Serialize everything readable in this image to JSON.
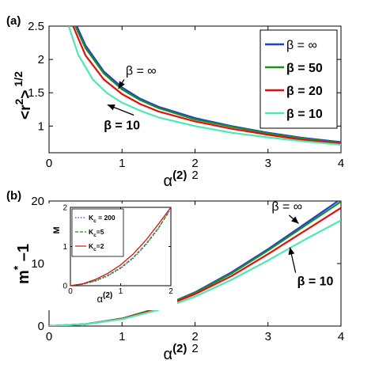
{
  "chart_data": [
    {
      "panel_label": "(a)",
      "type": "line",
      "xlabel": "α",
      "xlabel_sup": "(2)",
      "xlabel_sup2": "2",
      "ylabel": "<r",
      "ylabel_sup": "2",
      "ylabel_rest": ">",
      "ylabel_sup2": "1/2",
      "xlim": [
        0,
        4
      ],
      "ylim": [
        0.6,
        2.5
      ],
      "xticks": [
        "0",
        "1",
        "2",
        "3",
        "4"
      ],
      "xtick_values": [
        0,
        1,
        2,
        3,
        4
      ],
      "yticks": [
        "1",
        "1.5",
        "2",
        "2.5"
      ],
      "ytick_values": [
        1,
        1.5,
        2,
        2.5
      ],
      "legend_position": "top-right",
      "legend": [
        "β = ∞",
        "β = 50",
        "β = 20",
        "β = 10"
      ],
      "series": [
        {
          "name": "β = ∞",
          "color": "#1f3fd6",
          "x": [
            0.38,
            0.5,
            0.75,
            1.0,
            1.25,
            1.5,
            2.0,
            2.5,
            3.0,
            3.5,
            4.0
          ],
          "y": [
            2.5,
            2.21,
            1.82,
            1.58,
            1.41,
            1.29,
            1.12,
            1.0,
            0.9,
            0.82,
            0.76
          ]
        },
        {
          "name": "β = 50",
          "color": "#1e8f1e",
          "x": [
            0.36,
            0.5,
            0.75,
            1.0,
            1.25,
            1.5,
            2.0,
            2.5,
            3.0,
            3.5,
            4.0
          ],
          "y": [
            2.5,
            2.17,
            1.79,
            1.55,
            1.39,
            1.27,
            1.1,
            0.99,
            0.89,
            0.81,
            0.75
          ]
        },
        {
          "name": "β = 20",
          "color": "#e01010",
          "x": [
            0.33,
            0.5,
            0.75,
            1.0,
            1.25,
            1.5,
            2.0,
            2.5,
            3.0,
            3.5,
            4.0
          ],
          "y": [
            2.5,
            2.06,
            1.7,
            1.48,
            1.33,
            1.22,
            1.07,
            0.96,
            0.87,
            0.79,
            0.74
          ]
        },
        {
          "name": "β = 10",
          "color": "#4ee8b0",
          "x": [
            0.27,
            0.4,
            0.6,
            0.8,
            1.0,
            1.25,
            1.5,
            2.0,
            2.5,
            3.0,
            3.5,
            4.0
          ],
          "y": [
            2.5,
            2.07,
            1.7,
            1.49,
            1.35,
            1.23,
            1.13,
            1.0,
            0.9,
            0.83,
            0.77,
            0.72
          ]
        }
      ],
      "annotations": [
        {
          "text": "β = ∞",
          "x": 1.05,
          "y": 1.77,
          "arrow_to": [
            0.95,
            1.56
          ]
        },
        {
          "text": "β = 10",
          "x": 0.75,
          "y": 0.95,
          "arrow_to": [
            0.8,
            1.32
          ]
        }
      ]
    },
    {
      "panel_label": "(b)",
      "type": "line",
      "xlabel": "α",
      "xlabel_sup": "(2)",
      "xlabel_sup2": "2",
      "ylabel": "m",
      "ylabel_sup": "*",
      "ylabel_rest": " –1",
      "xlim": [
        0,
        4
      ],
      "ylim": [
        0,
        20
      ],
      "xticks": [
        "0",
        "1",
        "2",
        "3",
        "4"
      ],
      "xtick_values": [
        0,
        1,
        2,
        3,
        4
      ],
      "yticks": [
        "0",
        "10",
        "20"
      ],
      "ytick_values": [
        0,
        10,
        20
      ],
      "series": [
        {
          "name": "β = ∞",
          "color": "#1f3fd6",
          "x": [
            0,
            0.5,
            1.0,
            1.5,
            2.0,
            2.5,
            3.0,
            3.5,
            3.96
          ],
          "y": [
            0,
            0.3,
            1.2,
            2.9,
            5.4,
            8.6,
            12.3,
            16.3,
            20.0
          ]
        },
        {
          "name": "β = 50",
          "color": "#1e8f1e",
          "x": [
            0,
            0.5,
            1.0,
            1.5,
            2.0,
            2.5,
            3.0,
            3.5,
            4.0
          ],
          "y": [
            0,
            0.3,
            1.2,
            2.9,
            5.3,
            8.4,
            12.1,
            16.0,
            19.9
          ]
        },
        {
          "name": "β = 20",
          "color": "#e01010",
          "x": [
            0,
            0.5,
            1.0,
            1.5,
            2.0,
            2.5,
            3.0,
            3.5,
            4.0
          ],
          "y": [
            0,
            0.3,
            1.15,
            2.8,
            5.1,
            8.0,
            11.5,
            15.2,
            18.9
          ]
        },
        {
          "name": "β = 10",
          "color": "#4ee8b0",
          "x": [
            0,
            0.5,
            1.0,
            1.5,
            2.0,
            2.5,
            3.0,
            3.5,
            4.0
          ],
          "y": [
            0,
            0.3,
            1.1,
            2.6,
            4.7,
            7.4,
            10.5,
            13.8,
            16.9
          ]
        }
      ],
      "annotations": [
        {
          "text": "β = ∞",
          "x": 3.05,
          "y": 18.5,
          "arrow_to": [
            3.42,
            16.4
          ]
        },
        {
          "text": "β = 10",
          "x": 3.4,
          "y": 6.5,
          "arrow_to": [
            3.3,
            12.6
          ]
        }
      ],
      "inset": {
        "type": "line",
        "xlabel": "α",
        "xlabel_sup": "(2)",
        "ylabel": "M",
        "xlim": [
          0,
          2
        ],
        "ylim": [
          0,
          2
        ],
        "xticks": [
          "0",
          "1",
          "2"
        ],
        "xtick_values": [
          0,
          1,
          2
        ],
        "yticks": [
          "0",
          "1",
          "2"
        ],
        "ytick_values": [
          0,
          1,
          2
        ],
        "legend_position": "top-left",
        "series": [
          {
            "name": "K",
            "sub": "c",
            "suffix": " = 200",
            "color": "#3a3ae0",
            "dash": "dotted",
            "x": [
              0,
              0.25,
              0.5,
              0.75,
              1.0,
              1.25,
              1.5,
              1.75,
              1.95
            ],
            "y": [
              0,
              0.04,
              0.12,
              0.25,
              0.44,
              0.7,
              1.04,
              1.45,
              1.88
            ]
          },
          {
            "name": "K",
            "sub": "c",
            "suffix": "=5",
            "color": "#1e8f1e",
            "dash": "dashed",
            "x": [
              0,
              0.25,
              0.5,
              0.75,
              1.0,
              1.25,
              1.5,
              1.75,
              1.97
            ],
            "y": [
              0,
              0.04,
              0.13,
              0.27,
              0.46,
              0.72,
              1.06,
              1.47,
              1.9
            ]
          },
          {
            "name": "K",
            "sub": "c",
            "suffix": "=2",
            "color": "#e01010",
            "dash": "solid",
            "x": [
              0,
              0.25,
              0.5,
              0.75,
              1.0,
              1.25,
              1.5,
              1.75,
              2.0
            ],
            "y": [
              0,
              0.05,
              0.16,
              0.32,
              0.53,
              0.81,
              1.16,
              1.57,
              2.0
            ]
          }
        ]
      }
    }
  ]
}
